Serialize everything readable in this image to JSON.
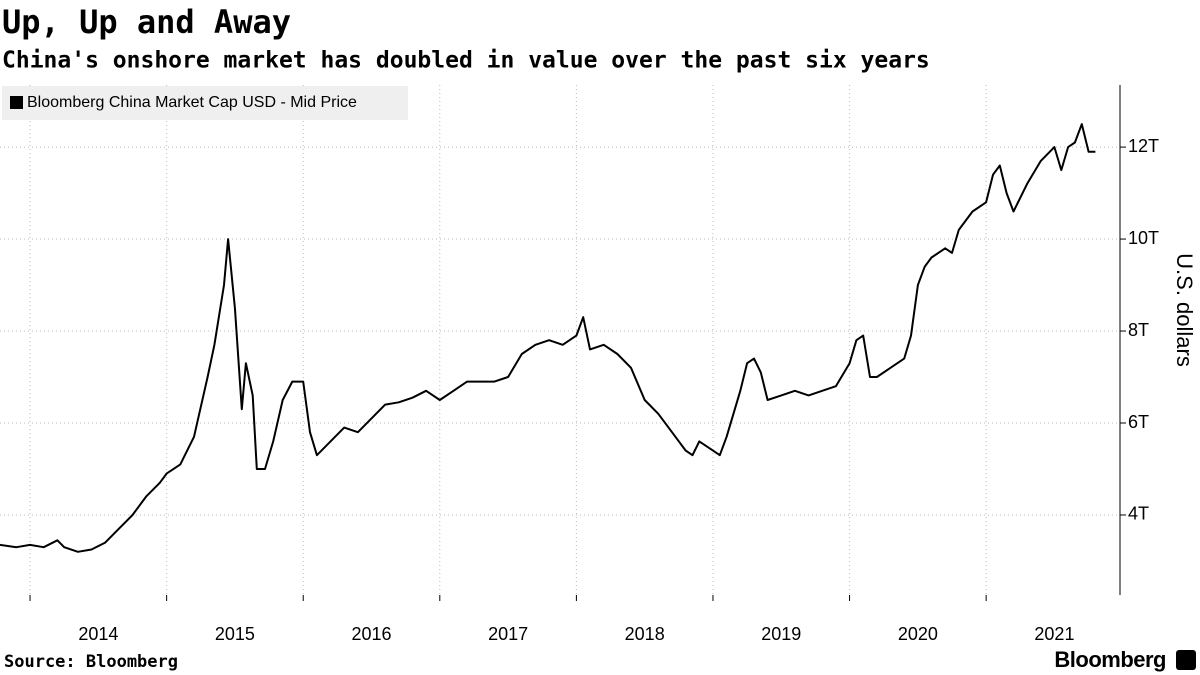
{
  "chart_data": {
    "type": "line",
    "title": "Up, Up and Away",
    "subtitle": "China's onshore market has doubled in value over the past six years",
    "y_label": "U.S. dollars",
    "source": "Source: Bloomberg",
    "brand": "Bloomberg",
    "legend": "top-left",
    "grid": true,
    "xlim": [
      2013.78,
      2021.98
    ],
    "xticks": [
      2014,
      2015,
      2016,
      2017,
      2018,
      2019,
      2020,
      2021
    ],
    "ylim": [
      2.26,
      13.35
    ],
    "yticks": [
      {
        "value": 4,
        "label": "4T"
      },
      {
        "value": 6,
        "label": "6T"
      },
      {
        "value": 8,
        "label": "8T"
      },
      {
        "value": 10,
        "label": "10T"
      },
      {
        "value": 12,
        "label": "12T"
      }
    ],
    "x": [
      2013.78,
      2013.9,
      2014.0,
      2014.1,
      2014.2,
      2014.25,
      2014.35,
      2014.45,
      2014.55,
      2014.65,
      2014.75,
      2014.85,
      2014.95,
      2015.0,
      2015.1,
      2015.2,
      2015.3,
      2015.35,
      2015.42,
      2015.45,
      2015.5,
      2015.55,
      2015.58,
      2015.63,
      2015.66,
      2015.72,
      2015.78,
      2015.85,
      2015.92,
      2016.0,
      2016.05,
      2016.1,
      2016.2,
      2016.3,
      2016.4,
      2016.5,
      2016.6,
      2016.7,
      2016.8,
      2016.9,
      2017.0,
      2017.1,
      2017.2,
      2017.3,
      2017.4,
      2017.5,
      2017.6,
      2017.7,
      2017.8,
      2017.9,
      2018.0,
      2018.05,
      2018.1,
      2018.2,
      2018.3,
      2018.4,
      2018.5,
      2018.6,
      2018.7,
      2018.8,
      2018.85,
      2018.9,
      2019.0,
      2019.05,
      2019.1,
      2019.2,
      2019.25,
      2019.3,
      2019.35,
      2019.4,
      2019.5,
      2019.6,
      2019.7,
      2019.8,
      2019.9,
      2020.0,
      2020.05,
      2020.1,
      2020.15,
      2020.2,
      2020.3,
      2020.4,
      2020.45,
      2020.5,
      2020.55,
      2020.6,
      2020.7,
      2020.75,
      2020.8,
      2020.9,
      2021.0,
      2021.05,
      2021.1,
      2021.15,
      2021.2,
      2021.3,
      2021.4,
      2021.5,
      2021.55,
      2021.6,
      2021.65,
      2021.7,
      2021.75,
      2021.8
    ],
    "series": [
      {
        "name": "Bloomberg China Market Cap USD - Mid Price",
        "color": "#000000",
        "values": [
          3.35,
          3.3,
          3.35,
          3.3,
          3.45,
          3.3,
          3.2,
          3.25,
          3.4,
          3.7,
          4.0,
          4.4,
          4.7,
          4.9,
          5.1,
          5.7,
          7.0,
          7.7,
          9.0,
          10.0,
          8.5,
          6.3,
          7.3,
          6.6,
          5.0,
          5.0,
          5.6,
          6.5,
          6.9,
          6.9,
          5.8,
          5.3,
          5.6,
          5.9,
          5.8,
          6.1,
          6.4,
          6.45,
          6.55,
          6.7,
          6.5,
          6.7,
          6.9,
          6.9,
          6.9,
          7.0,
          7.5,
          7.7,
          7.8,
          7.7,
          7.9,
          8.3,
          7.6,
          7.7,
          7.5,
          7.2,
          6.5,
          6.2,
          5.8,
          5.4,
          5.3,
          5.6,
          5.4,
          5.3,
          5.7,
          6.7,
          7.3,
          7.4,
          7.1,
          6.5,
          6.6,
          6.7,
          6.6,
          6.7,
          6.8,
          7.3,
          7.8,
          7.9,
          7.0,
          7.0,
          7.2,
          7.4,
          7.9,
          9.0,
          9.4,
          9.6,
          9.8,
          9.7,
          10.2,
          10.6,
          10.8,
          11.4,
          11.6,
          11.0,
          10.6,
          11.2,
          11.7,
          12.0,
          11.5,
          12.0,
          12.1,
          12.5,
          11.9,
          11.9
        ]
      }
    ]
  }
}
